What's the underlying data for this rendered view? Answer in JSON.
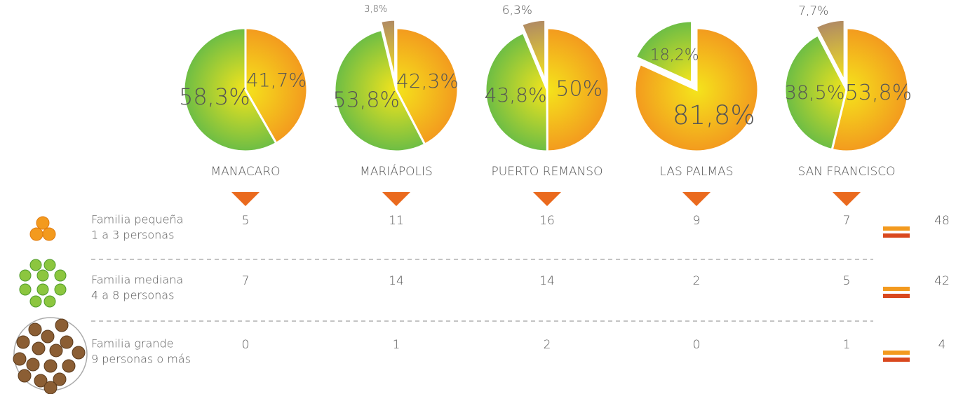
{
  "chart_data": [
    {
      "type": "pie",
      "title": "MANACARO",
      "values": [
        41.7,
        58.3
      ],
      "value_labels": [
        "41,7%",
        "58,3%"
      ],
      "colors": [
        "#f39a1e",
        "#6cbd45"
      ]
    },
    {
      "type": "pie",
      "title": "MARIÁPOLIS",
      "values": [
        42.3,
        53.8,
        3.8
      ],
      "value_labels": [
        "42,3%",
        "53,8%",
        "3,8%"
      ],
      "colors": [
        "#f39a1e",
        "#6cbd45",
        "#b08a64"
      ],
      "explode": 2
    },
    {
      "type": "pie",
      "title": "PUERTO REMANSO",
      "values": [
        50,
        43.8,
        6.3
      ],
      "value_labels": [
        "50%",
        "43,8%",
        "6,3%"
      ],
      "colors": [
        "#f39a1e",
        "#6cbd45",
        "#b08a64"
      ],
      "explode": 2
    },
    {
      "type": "pie",
      "title": "LAS PALMAS",
      "values": [
        81.8,
        18.2
      ],
      "value_labels": [
        "81,8%",
        "18,2%"
      ],
      "colors": [
        "#f39a1e",
        "#6cbd45"
      ],
      "explode": 1
    },
    {
      "type": "pie",
      "title": "SAN FRANCISCO",
      "values": [
        53.8,
        38.5,
        7.7
      ],
      "value_labels": [
        "53,8%",
        "38,5%",
        "7,7%"
      ],
      "colors": [
        "#f39a1e",
        "#6cbd45",
        "#b08a64"
      ],
      "explode": 2
    }
  ],
  "table": {
    "rows": [
      {
        "label": [
          "Familia pequeña",
          "1 a 3 personas"
        ],
        "values": [
          5,
          11,
          16,
          9,
          7
        ],
        "total": 48
      },
      {
        "label": [
          "Familia mediana",
          "4 a 8 personas"
        ],
        "values": [
          7,
          14,
          14,
          2,
          5
        ],
        "total": 42
      },
      {
        "label": [
          "Familia grande",
          "9 personas o más"
        ],
        "values": [
          0,
          1,
          2,
          0,
          1
        ],
        "total": 4
      }
    ]
  }
}
